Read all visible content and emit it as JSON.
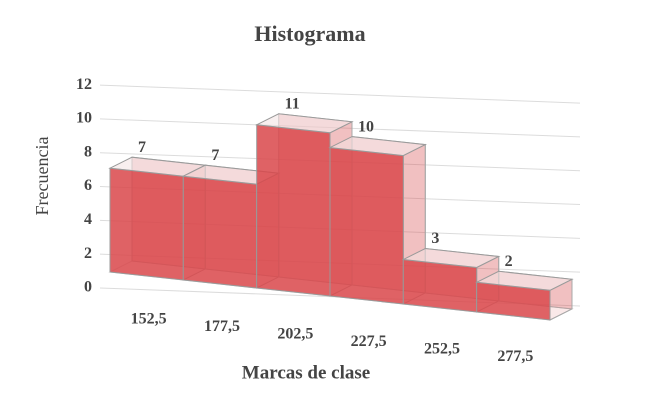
{
  "chart_data": {
    "type": "bar",
    "title": "Histograma",
    "x_label": "Marcas de clase",
    "y_label": "Frecuencia",
    "categories": [
      "152,5",
      "177,5",
      "202,5",
      "227,5",
      "252,5",
      "277,5"
    ],
    "values": [
      7,
      7,
      11,
      10,
      3,
      2
    ],
    "color": "#d9474a",
    "ylim": [
      0,
      12
    ],
    "yticks": [
      0,
      2,
      4,
      6,
      8,
      10,
      12
    ],
    "grid": true,
    "data_labels": true
  }
}
